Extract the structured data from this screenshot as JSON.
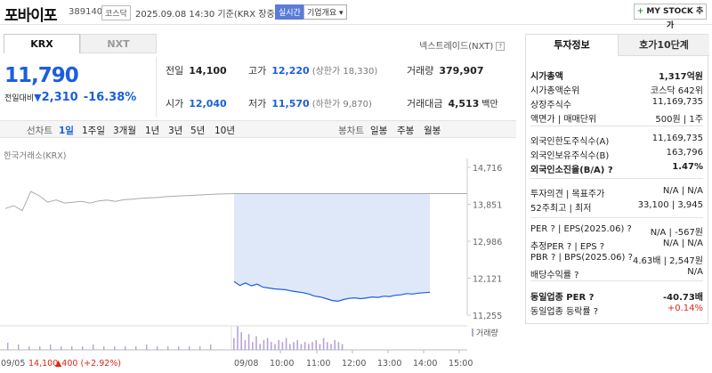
{
  "header": {
    "name": "포바이포",
    "code": "389140",
    "market": "코스닥",
    "date": "2025.09.08 14:30 기준(KRX 장중)",
    "realtime": "실시간",
    "corp_info": "기업개요",
    "mystock_plus": "+",
    "mystock": "MY STOCK 추가"
  },
  "tabs": {
    "krx": "KRX",
    "nxt": "NXT"
  },
  "nxt_label": "넥스트레이드(NXT)",
  "help_mark": "?",
  "quote": {
    "price": "11,790",
    "change_label": "전일대비",
    "change_tri": "▼",
    "change_value": "2,310",
    "change_pct": "-16.38%",
    "prev_label": "전일",
    "prev_value": "14,100",
    "high_label": "고가",
    "high_value": "12,220",
    "upper_limit": "(상한가 18,330)",
    "volume_label": "거래량",
    "volume_value": "379,907",
    "open_label": "시가",
    "open_value": "12,040",
    "low_label": "저가",
    "low_value": "11,570",
    "lower_limit": "(하한가 9,870)",
    "amount_label": "거래대금",
    "amount_value": "4,513",
    "amount_unit": "백만"
  },
  "periods": {
    "line_label": "선차트",
    "items": [
      "1일",
      "1주일",
      "3개월",
      "1년",
      "3년",
      "5년",
      "10년"
    ],
    "selected": "1일",
    "candle_label": "봉차트",
    "candle_items": [
      "일봉",
      "주봉",
      "월봉"
    ]
  },
  "chart_data": {
    "type": "line",
    "source": "한국거래소(KRX)",
    "y_ticks": [
      "14,716",
      "13,851",
      "12,986",
      "12,121",
      "11,255"
    ],
    "ylim": [
      11255,
      14716
    ],
    "x_ticks": [
      "09/05",
      "09/08",
      "10:00",
      "11:00",
      "12:00",
      "13:00",
      "14:00",
      "15:00"
    ],
    "prev_day": {
      "name": "09/05",
      "close": "14,100",
      "change": "▲400 (+2.92%)",
      "values": [
        13750,
        13820,
        13700,
        14150,
        14050,
        13900,
        13950,
        13880,
        13900,
        13920,
        13880,
        13930,
        13950,
        13920,
        13960,
        13970,
        13990,
        14000,
        14010,
        14030,
        14040,
        14050,
        14060,
        14070,
        14080,
        14090,
        14095,
        14100
      ]
    },
    "today": {
      "values": [
        12040,
        11950,
        12010,
        11940,
        11980,
        11910,
        11890,
        11870,
        11860,
        11850,
        11820,
        11800,
        11780,
        11750,
        11700,
        11680,
        11640,
        11600,
        11580,
        11620,
        11650,
        11660,
        11640,
        11660,
        11680,
        11670,
        11700,
        11690,
        11720,
        11730,
        11760,
        11750,
        11770,
        11780,
        11790
      ]
    },
    "volume_label": "거래량"
  },
  "sidebar": {
    "tab_info": "투자정보",
    "tab_quote": "호가10단계",
    "rows_1": [
      {
        "l": "시가총액",
        "r": "1,317억원",
        "bold": true
      },
      {
        "l": "시가총액순위",
        "r": "코스닥 642위",
        "bold": false
      },
      {
        "l": "상장주식수",
        "r": "11,169,735",
        "bold": false
      },
      {
        "l": "액면가 | 매매단위",
        "r": "500원 | 1주",
        "bold": false
      }
    ],
    "rows_2": [
      {
        "l": "외국인한도주식수(A)",
        "r": "11,169,735",
        "bold": false
      },
      {
        "l": "외국인보유주식수(B)",
        "r": "163,796",
        "bold": false
      },
      {
        "l": "외국인소진율(B/A) ?",
        "r": "1.47%",
        "bold": true
      }
    ],
    "rows_3": [
      {
        "l": "투자의견 | 목표주가",
        "r": "N/A | N/A",
        "bold": false
      },
      {
        "l": "52주최고 | 최저",
        "r": "33,100 | 3,945",
        "bold": false
      }
    ],
    "rows_4": [
      {
        "l": "PER ? | EPS(2025.06) ?",
        "r": "N/A | -567원",
        "bold": false
      },
      {
        "l": "추정PER ? | EPS ?",
        "r": "N/A | N/A",
        "bold": false
      },
      {
        "l": "PBR ? | BPS(2025.06) ?",
        "r": "4.63배 | 2,547원",
        "bold": false
      },
      {
        "l": "배당수익률 ?",
        "r": "N/A",
        "bold": false
      }
    ],
    "rows_5": [
      {
        "l": "동일업종 PER ?",
        "r": "-40.73배",
        "bold": true
      },
      {
        "l": "동일업종 등락률 ?",
        "r": "+0.14%",
        "bold": false,
        "red": true
      }
    ]
  },
  "colors": {
    "blue": "#1b5ee0",
    "red": "#e0251b",
    "prevline": "#aaaaaa",
    "shade": "#dfe8f8",
    "volume": "#b7a4d6"
  }
}
